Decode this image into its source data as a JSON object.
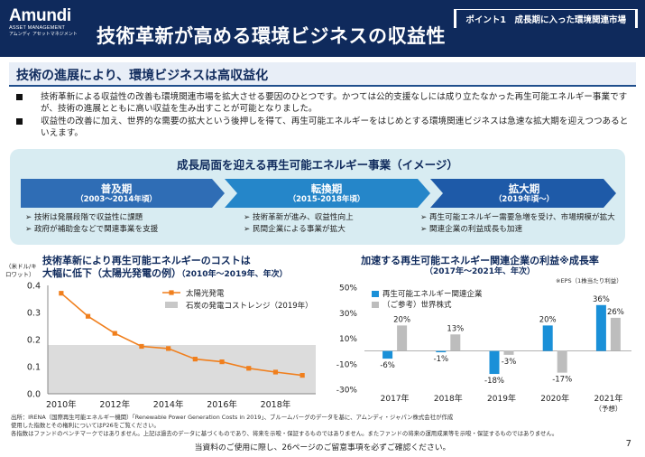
{
  "header": {
    "logo_name": "Amundi",
    "logo_sub": "ASSET MANAGEMENT",
    "logo_kana": "アムンディ アセットマネジメント",
    "title": "技術革新が高める環境ビジネスの収益性",
    "point_tag": "ポイント1　成長期に入った環境関連市場"
  },
  "section": {
    "heading": "技術の進展により、環境ビジネスは高収益化"
  },
  "bullets": [
    "技術革新による収益性の改善も環境関連市場を拡大させる要因のひとつです。かつては公的支援なしには成り立たなかった再生可能エネルギー事業ですが、技術の進展とともに高い収益を生み出すことが可能となりました。",
    "収益性の改善に加え、世界的な需要の拡大という後押しを得て、再生可能エネルギーをはじめとする環境関連ビジネスは急速な拡大期を迎えつつあるといえます。"
  ],
  "stages": {
    "title": "成長局面を迎える再生可能エネルギー事業（イメージ）",
    "items": [
      {
        "name": "普及期",
        "years": "（2003～2014年頃）",
        "points": [
          "技術は発展段階で収益性に課題",
          "政府が補助金などで関連事業を支援"
        ],
        "color": "#2f6db5"
      },
      {
        "name": "転換期",
        "years": "（2015-2018年頃）",
        "points": [
          "技術革新が進み、収益性向上",
          "民間企業による事業が拡大"
        ],
        "color": "#2586c9"
      },
      {
        "name": "拡大期",
        "years": "（2019年頃～）",
        "points": [
          "再生可能エネルギー需要急増を受け、市場規模が拡大",
          "関連企業の利益成長も加速"
        ],
        "color": "#1e5aa8"
      }
    ]
  },
  "left_chart": {
    "title_line1": "技術革新により再生可能エネルギーのコストは",
    "title_line2": "大幅に低下（太陽光発電の例）",
    "title_period": "（2010年～2019年、年次）",
    "unit": "（米ドル/キロワット）"
  },
  "right_chart": {
    "title": "加速する再生可能エネルギー関連企業の利益※成長率",
    "subtitle": "（2017年～2021年、年次）",
    "eps_note": "※EPS（1株当たり利益）"
  },
  "chart_data": [
    {
      "type": "line",
      "x": [
        2010,
        2011,
        2012,
        2013,
        2014,
        2015,
        2016,
        2017,
        2018,
        2019
      ],
      "series": [
        {
          "name": "太陽光発電",
          "values": [
            0.371,
            0.286,
            0.223,
            0.175,
            0.167,
            0.128,
            0.118,
            0.094,
            0.08,
            0.068
          ],
          "color": "#f07f1d"
        }
      ],
      "band": {
        "name": "石炭の発電コストレンジ（2019年）",
        "range": [
          0.0,
          0.18
        ],
        "color": "#dcdcdc"
      },
      "xtick_labels": [
        "2010年",
        "2012年",
        "2014年",
        "2016年",
        "2018年"
      ],
      "xtick_values": [
        2010,
        2012,
        2014,
        2016,
        2018
      ],
      "ytick_labels": [
        "0.0",
        "0.1",
        "0.2",
        "0.3",
        "0.4"
      ],
      "ylim": [
        0,
        0.4
      ],
      "grid": false,
      "legend": "top-right"
    },
    {
      "type": "bar",
      "categories": [
        "2017年",
        "2018年",
        "2019年",
        "2020年",
        "2021年"
      ],
      "category_notes": [
        "",
        "",
        "",
        "",
        "（予想）"
      ],
      "series": [
        {
          "name": "再生可能エネルギー関連企業",
          "values": [
            -6,
            -1,
            -18,
            20,
            36
          ],
          "labels": [
            "-6%",
            "-1%",
            "-18%",
            "20%",
            "36%"
          ],
          "color": "#1a90d8"
        },
        {
          "name": "（ご参考）世界株式",
          "values": [
            20,
            13,
            -3,
            -17,
            26
          ],
          "labels": [
            "20%",
            "13%",
            "-3%",
            "-17%",
            "26%"
          ],
          "color": "#bdbdbd"
        }
      ],
      "ytick_labels": [
        "-30%",
        "-10%",
        "10%",
        "30%",
        "50%"
      ],
      "ytick_values": [
        -30,
        -10,
        10,
        30,
        50
      ],
      "ylim": [
        -30,
        50
      ],
      "grid": false,
      "legend": "top-left"
    }
  ],
  "footnote": {
    "line1": "出所：IRENA（国際再生可能エネルギー機関）「Renewable Power Generation Costs in 2019」、ブルームバーグのデータを基に、アムンディ・ジャパン株式会社が作成",
    "line2": "使用した指数とその権利についてはP26をご覧ください。",
    "line3": "各指数はファンドのベンチマークではありません。上記は過去のデータに基づくものであり、将来を示唆・保証するものではありません。またファンドの将来の運用成果等を示唆・保証するものではありません。"
  },
  "footer": {
    "note": "当資料のご使用に際し、26ページのご留意事項を必ずご確認ください。",
    "page_number": "7"
  }
}
